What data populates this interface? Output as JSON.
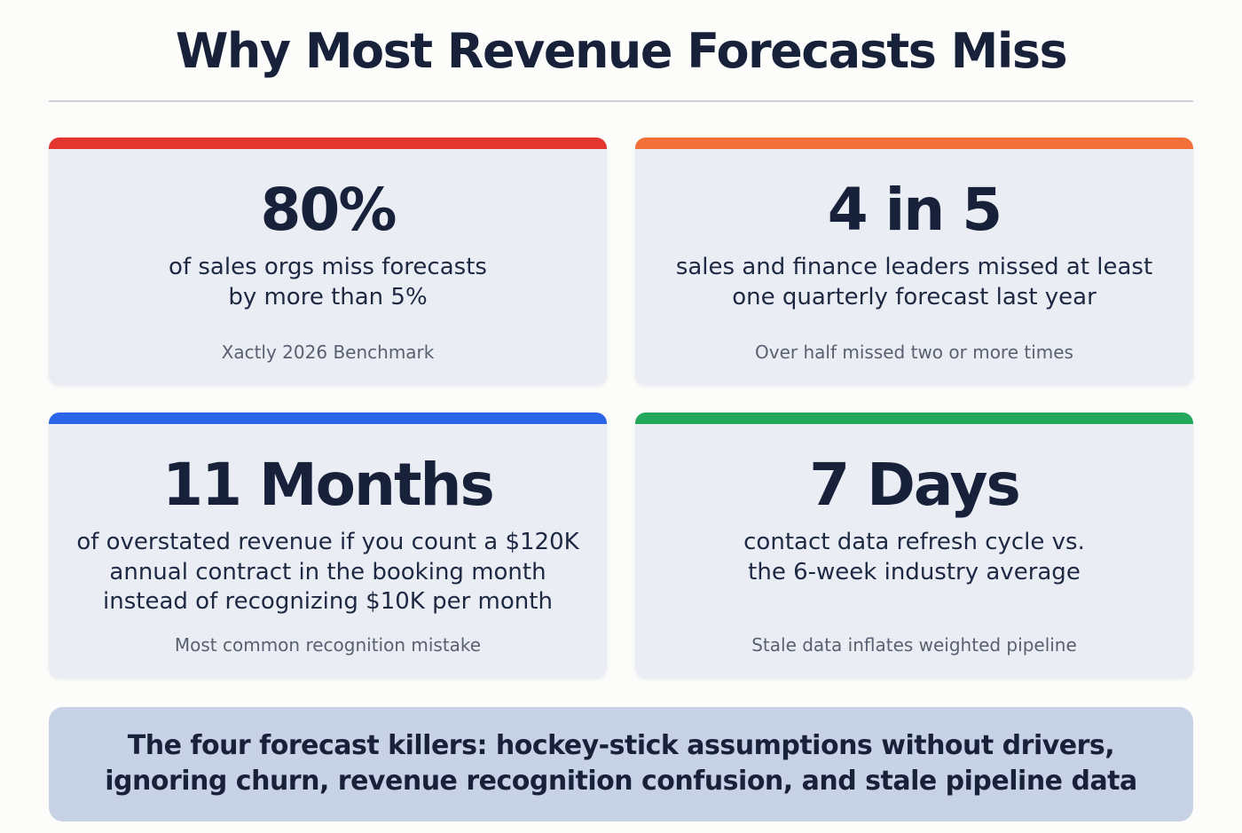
{
  "title": "Why Most Revenue Forecasts Miss",
  "cards": [
    {
      "accent": "#e2362f",
      "stat": "80%",
      "description": "of sales orgs miss forecasts\nby more than 5%",
      "caption": "Xactly 2026 Benchmark"
    },
    {
      "accent": "#f2703a",
      "stat": "4 in 5",
      "description": "sales and finance leaders missed at least\none quarterly forecast last year",
      "caption": "Over half missed two or more times"
    },
    {
      "accent": "#2a64e8",
      "stat": "11 Months",
      "description": "of overstated revenue if you count a $120K\nannual contract in the booking month\ninstead of recognizing $10K per month",
      "caption": "Most common recognition mistake"
    },
    {
      "accent": "#23a85c",
      "stat": "7 Days",
      "description": "contact data refresh cycle vs.\nthe 6-week industry average",
      "caption": "Stale data inflates weighted pipeline"
    }
  ],
  "banner": {
    "text": "The four forecast killers: hockey-stick assumptions without drivers,\nignoring churn, revenue recognition confusion, and stale pipeline data"
  },
  "colors": {
    "card_bg": "#eaedf4",
    "banner_bg": "#c8d2e6",
    "text_dark": "#18213a",
    "caption_gray": "#59606f",
    "accent_red": "#e2362f",
    "accent_orange": "#f2703a",
    "accent_blue": "#2a64e8",
    "accent_green": "#23a85c"
  }
}
